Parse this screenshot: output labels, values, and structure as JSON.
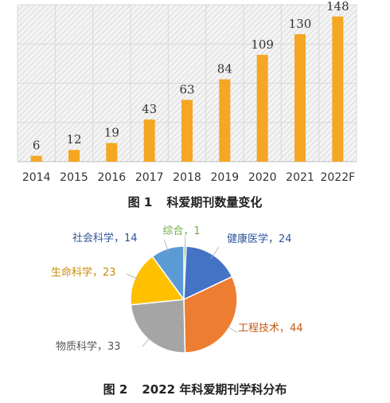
{
  "colors": {
    "bar": "#F5A623",
    "hatch": "#c9c9c9",
    "text": "#333333",
    "pie_text": "#555555"
  },
  "figure1": {
    "number": "图 1",
    "title": "科爱期刊数量变化"
  },
  "figure2": {
    "number": "图 2",
    "title": "2022 年科爱期刊学科分布"
  },
  "chart_data": [
    {
      "type": "bar",
      "categories": [
        "2014",
        "2015",
        "2016",
        "2017",
        "2018",
        "2019",
        "2020",
        "2021",
        "2022F"
      ],
      "values": [
        6,
        12,
        19,
        43,
        63,
        84,
        109,
        130,
        148
      ],
      "ylim": [
        0,
        160
      ],
      "title": "",
      "xlabel": "",
      "ylabel": "",
      "grid": true
    },
    {
      "type": "pie",
      "start_angle_deg": 0,
      "direction": "clockwise",
      "slices": [
        {
          "label": "综合",
          "value": 1,
          "display": "综合，1",
          "color": "#70AD47",
          "text_color": "#70AD47"
        },
        {
          "label": "健康医学",
          "value": 24,
          "display": "健康医学，24",
          "color": "#4472C4",
          "text_color": "#2F5597"
        },
        {
          "label": "工程技术",
          "value": 44,
          "display": "工程技术，44",
          "color": "#ED7D31",
          "text_color": "#C55A11"
        },
        {
          "label": "物质科学",
          "value": 33,
          "display": "物质科学，33",
          "color": "#A5A5A5",
          "text_color": "#555555"
        },
        {
          "label": "生命科学",
          "value": 23,
          "display": "生命科学，23",
          "color": "#FFC000",
          "text_color": "#C98B00"
        },
        {
          "label": "社会科学",
          "value": 14,
          "display": "社会科学，14",
          "color": "#5B9BD5",
          "text_color": "#2F5597"
        }
      ]
    }
  ]
}
